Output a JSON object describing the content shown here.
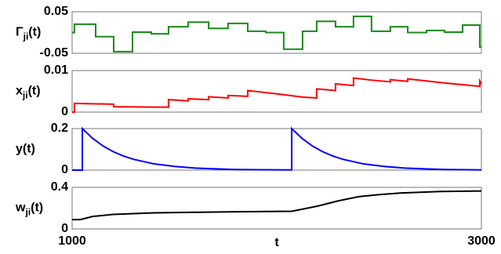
{
  "chart_data": [
    {
      "type": "line",
      "ylabel": [
        "Γ",
        "ji",
        "(t)"
      ],
      "ylim": [
        -0.05,
        0.05
      ],
      "yticks": [
        -0.05,
        0.05
      ],
      "xlim": [
        1000,
        3000
      ],
      "x": [
        1000,
        1011,
        1011,
        1115,
        1115,
        1203,
        1203,
        1295,
        1295,
        1387,
        1387,
        1471,
        1471,
        1567,
        1567,
        1667,
        1667,
        1762,
        1762,
        1858,
        1858,
        1946,
        1946,
        2034,
        2034,
        2126,
        2126,
        2195,
        2195,
        2287,
        2287,
        2375,
        2375,
        2463,
        2463,
        2555,
        2555,
        2640,
        2640,
        2732,
        2732,
        2820,
        2820,
        2908,
        2908,
        2992,
        2992,
        3000
      ],
      "values": [
        0,
        0,
        0.02,
        0.02,
        -0.01,
        -0.01,
        -0.046,
        -0.046,
        0.001,
        0.001,
        -0.003,
        -0.003,
        0.014,
        0.014,
        0.025,
        0.025,
        0.01,
        0.01,
        0.022,
        0.022,
        0.003,
        0.003,
        0,
        0,
        -0.04,
        -0.04,
        0.003,
        0.003,
        0.027,
        0.027,
        0.014,
        0.014,
        0.039,
        0.039,
        0.003,
        0.003,
        0.014,
        0.014,
        0,
        0,
        0.005,
        0.005,
        0.001,
        0.001,
        0.018,
        0.018,
        -0.035,
        -0.035
      ],
      "color": "#1a8a1a"
    },
    {
      "type": "line",
      "ylabel": [
        "x",
        "ji",
        "(t)"
      ],
      "ylim": [
        0,
        0.01
      ],
      "yticks": [
        0,
        0.01
      ],
      "xlim": [
        1000,
        3000
      ],
      "x": [
        1000,
        1011,
        1011,
        1203,
        1203,
        1387,
        1387,
        1471,
        1471,
        1567,
        1567,
        1667,
        1667,
        1762,
        1762,
        1858,
        1858,
        2034,
        2034,
        2126,
        2126,
        2195,
        2195,
        2287,
        2287,
        2375,
        2375,
        2463,
        2463,
        2555,
        2555,
        2640,
        2640,
        2732,
        2732,
        2820,
        2820,
        2908,
        2908,
        2992,
        2992,
        3000
      ],
      "values": [
        0,
        0,
        0.0021,
        0.0019,
        0.0013,
        0.0012,
        0.0012,
        0.0012,
        0.003,
        0.0027,
        0.0032,
        0.003,
        0.0037,
        0.0034,
        0.004,
        0.0038,
        0.0052,
        0.0042,
        0.0042,
        0.0036,
        0.0036,
        0.0034,
        0.0056,
        0.0052,
        0.0068,
        0.0064,
        0.0082,
        0.0077,
        0.0077,
        0.0073,
        0.0078,
        0.0074,
        0.008,
        0.0075,
        0.0075,
        0.007,
        0.007,
        0.0066,
        0.0066,
        0.0062,
        0.0075,
        0.0068
      ],
      "color": "#ff0000"
    },
    {
      "type": "line",
      "ylabel": [
        "y(t)"
      ],
      "ylim": [
        0,
        0.2
      ],
      "yticks": [
        0,
        0.2
      ],
      "xlim": [
        1000,
        3000
      ],
      "x": [
        1000,
        1050,
        1050,
        1100,
        1150,
        1200,
        1250,
        1300,
        1400,
        1500,
        1600,
        1700,
        1800,
        1900,
        2073,
        2073,
        2123,
        2173,
        2223,
        2273,
        2323,
        2423,
        2523,
        2623,
        2723,
        2823,
        2923,
        3000
      ],
      "values": [
        0,
        0,
        0.2,
        0.153,
        0.117,
        0.089,
        0.068,
        0.052,
        0.03,
        0.018,
        0.01,
        0.006,
        0.003,
        0.002,
        0.001,
        0.2,
        0.153,
        0.117,
        0.089,
        0.068,
        0.052,
        0.03,
        0.018,
        0.01,
        0.006,
        0.003,
        0.002,
        0.001
      ],
      "color": "#0000ff"
    },
    {
      "type": "line",
      "ylabel": [
        "w",
        "ji",
        "(t)"
      ],
      "ylim": [
        0,
        0.4
      ],
      "yticks": [
        0,
        0.4
      ],
      "xlim": [
        1000,
        3000
      ],
      "xticks": [
        1000,
        3000
      ],
      "xlabel": "t",
      "x": [
        1000,
        1040,
        1100,
        1200,
        1400,
        1600,
        1800,
        2073,
        2100,
        2200,
        2300,
        2400,
        2500,
        2600,
        2800,
        3000
      ],
      "values": [
        0.09,
        0.09,
        0.12,
        0.14,
        0.155,
        0.16,
        0.165,
        0.17,
        0.18,
        0.22,
        0.27,
        0.31,
        0.33,
        0.345,
        0.36,
        0.365
      ],
      "color": "#000000"
    }
  ]
}
